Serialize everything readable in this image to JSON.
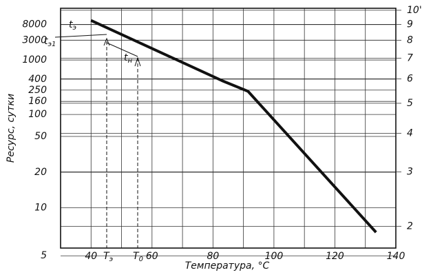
{
  "chart_data": {
    "type": "line",
    "x_label": "Температура, °C",
    "y_label": "Ресурс, сутки",
    "x": [
      40,
      83,
      91.5,
      133.5
    ],
    "values": [
      10600,
      373,
      238,
      6.8
    ],
    "color": "#111111",
    "xlim": [
      30,
      140
    ],
    "xticks": [
      40,
      60,
      80,
      100,
      120,
      140
    ],
    "ylim": [
      5.5,
      25600
    ],
    "yscale": "loglog",
    "yticks": [
      5,
      10,
      20,
      50,
      100,
      160,
      250,
      400,
      1000,
      3000,
      8000
    ],
    "y2lim": [
      1.7,
      10.15
    ],
    "y2scale": "log",
    "y2ticks": [
      2,
      3,
      4,
      5,
      6,
      7,
      8,
      9,
      {
        "value": 10,
        "label": "10'"
      }
    ],
    "grid": true,
    "annotations": [
      {
        "text": "t",
        "sub": "э"
      },
      {
        "text": "t",
        "sub": "э1"
      },
      {
        "text": "t",
        "sub": "н"
      },
      {
        "text": "T",
        "sub": "э"
      },
      {
        "text": "T",
        "sub": "0"
      }
    ]
  }
}
